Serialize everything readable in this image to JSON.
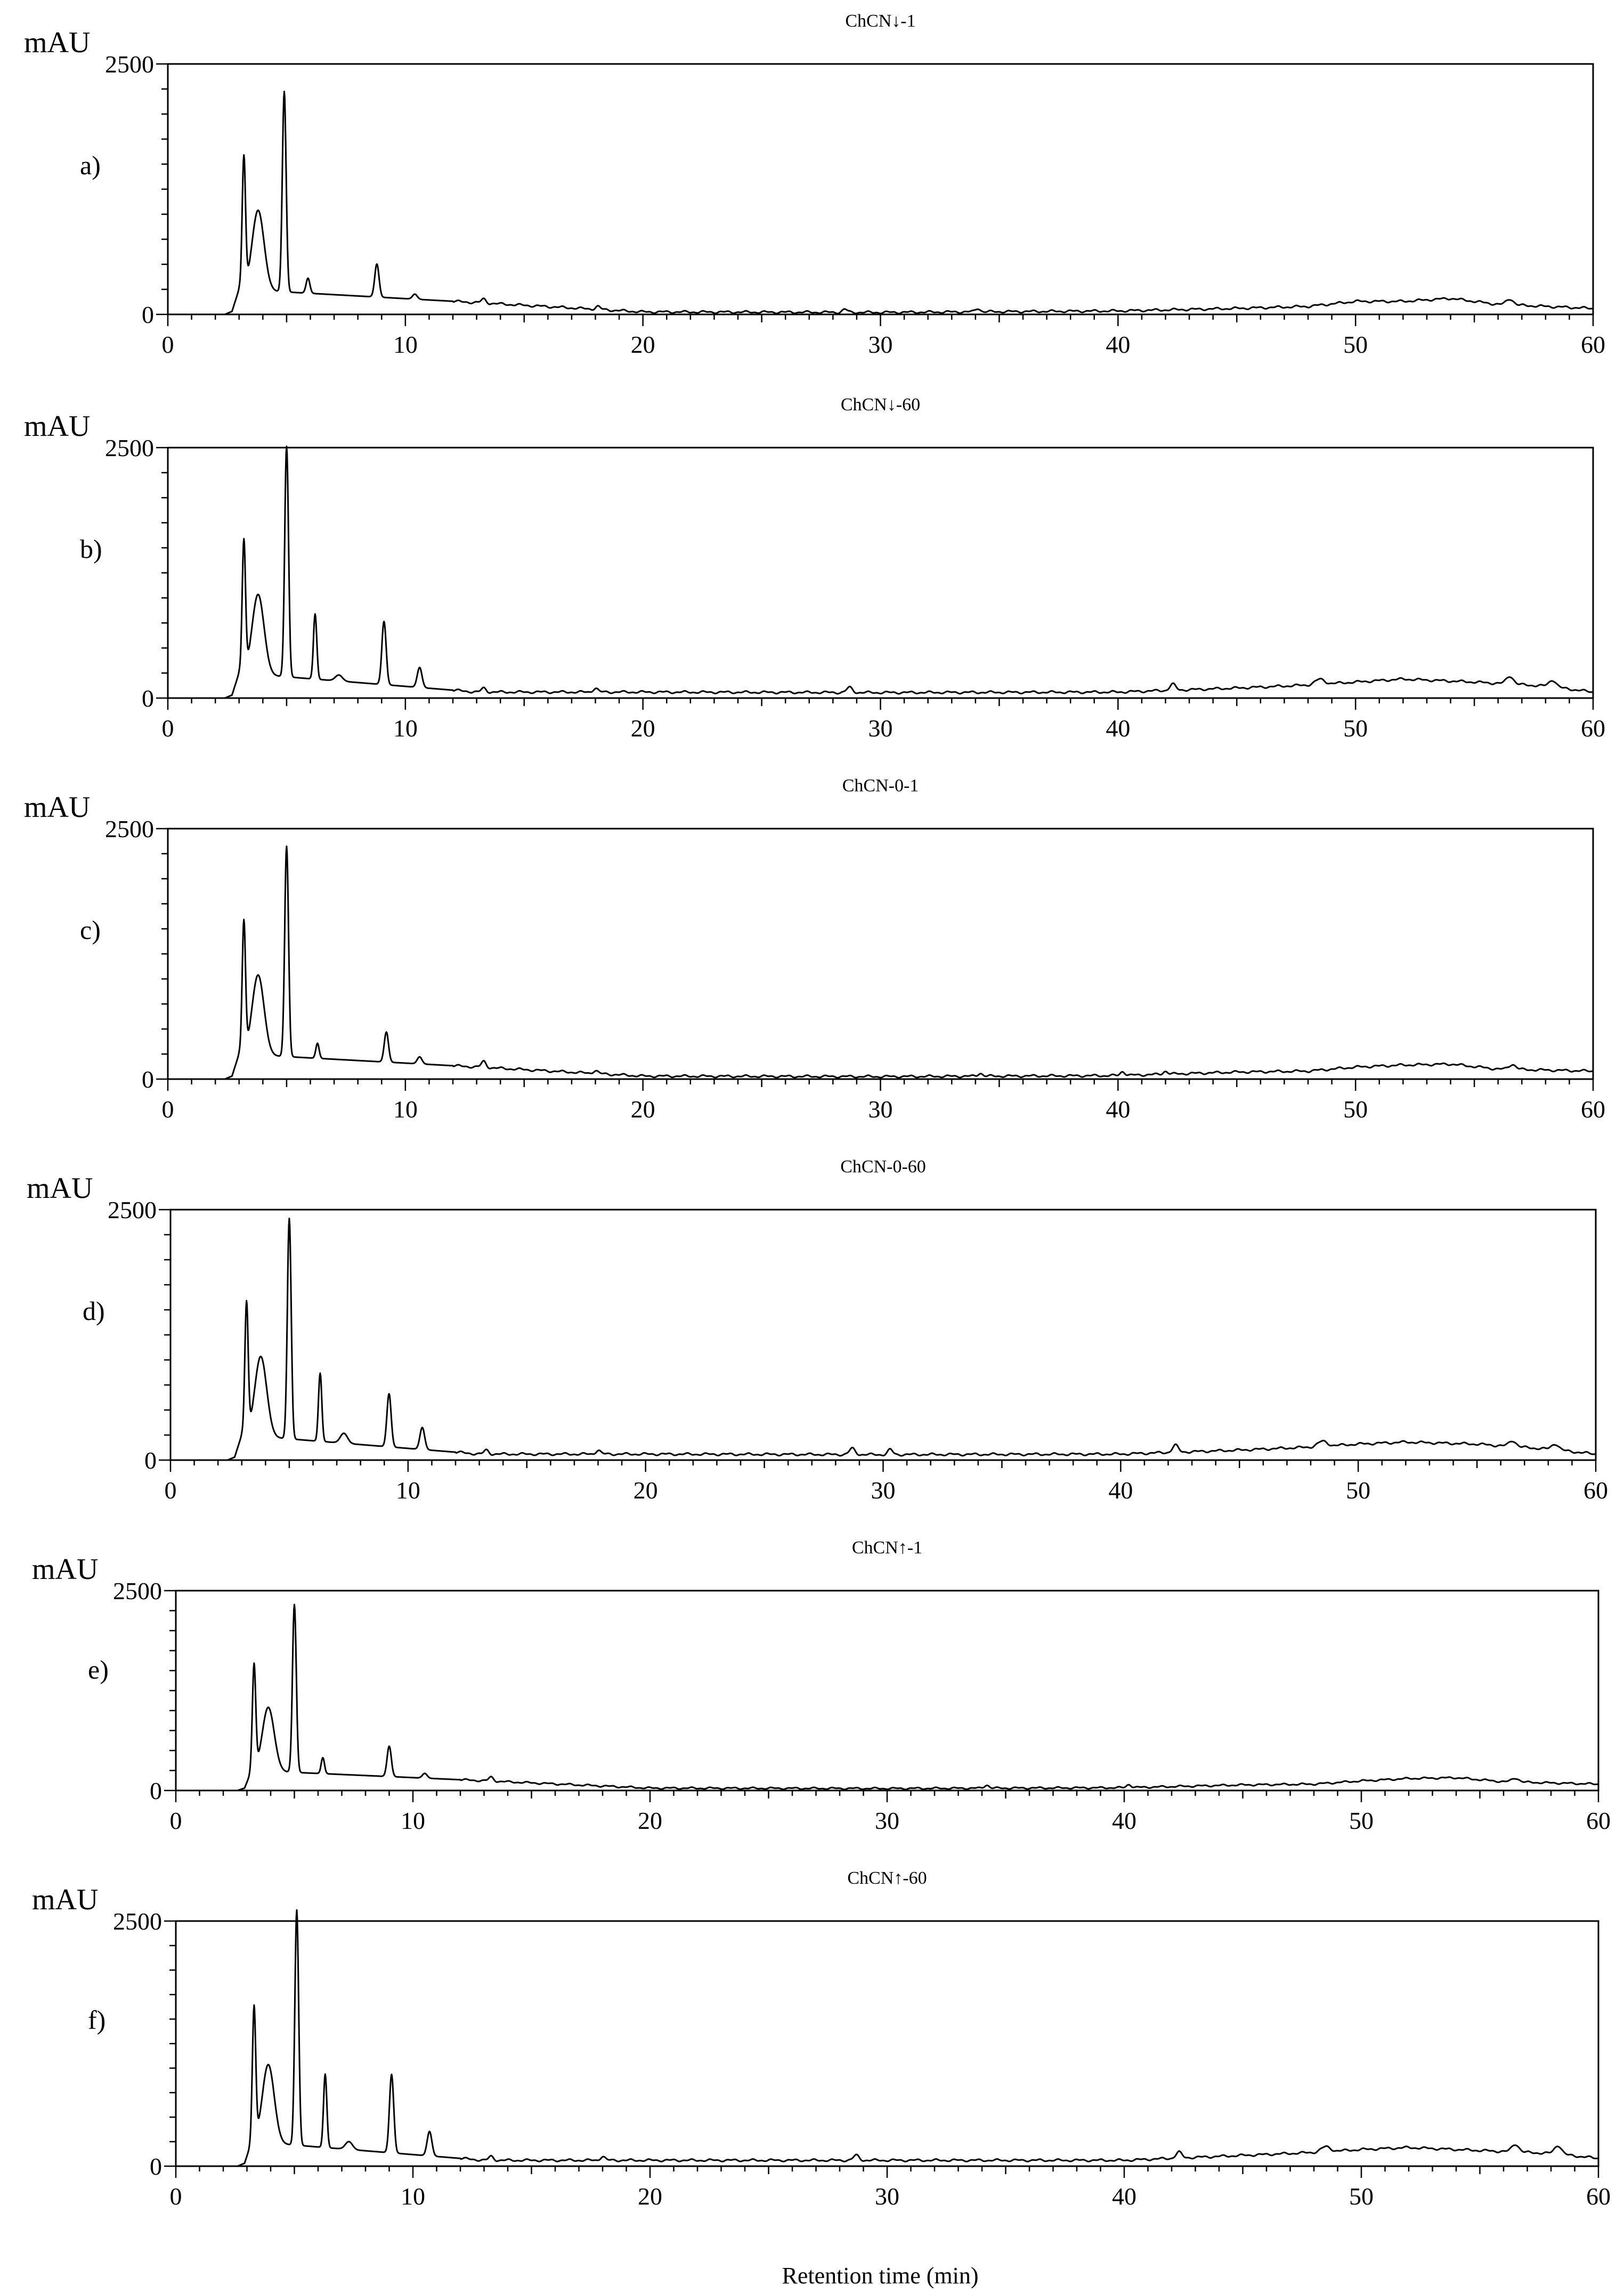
{
  "figure": {
    "xlabel": "Retention time (min)"
  },
  "chart_data": [
    {
      "type": "line",
      "panel": "a)",
      "title": "ChCN↓-1",
      "ylabel": "mAU",
      "xlim": [
        0,
        60
      ],
      "ylim": [
        0,
        2500
      ],
      "xticks": [
        0,
        10,
        20,
        30,
        40,
        50,
        60
      ],
      "yticks": [
        0,
        2500
      ],
      "baseline": [
        [
          0,
          0
        ],
        [
          2.4,
          0
        ],
        [
          2.7,
          30
        ],
        [
          3,
          250
        ],
        [
          20,
          25
        ],
        [
          30,
          20
        ],
        [
          40,
          35
        ],
        [
          45,
          60
        ],
        [
          48,
          80
        ],
        [
          50,
          130
        ],
        [
          52,
          130
        ],
        [
          54,
          160
        ],
        [
          56,
          100
        ],
        [
          60,
          60
        ]
      ],
      "peaks": [
        [
          3.2,
          1300,
          0.07
        ],
        [
          3.8,
          800,
          0.25
        ],
        [
          4.9,
          2000,
          0.08
        ],
        [
          5.9,
          150,
          0.08
        ],
        [
          8.8,
          330,
          0.09
        ],
        [
          10.4,
          50,
          0.1
        ],
        [
          13.3,
          40,
          0.1
        ],
        [
          18.1,
          30,
          0.1
        ],
        [
          28.5,
          30,
          0.1
        ],
        [
          34.1,
          35,
          0.1
        ],
        [
          56.5,
          60,
          0.15
        ]
      ]
    },
    {
      "type": "line",
      "panel": "b)",
      "title": "ChCN↓-60",
      "ylabel": "mAU",
      "xlim": [
        0,
        60
      ],
      "ylim": [
        0,
        2500
      ],
      "xticks": [
        0,
        10,
        20,
        30,
        40,
        50,
        60
      ],
      "yticks": [
        0,
        2500
      ],
      "baseline": [
        [
          0,
          0
        ],
        [
          2.4,
          0
        ],
        [
          2.7,
          30
        ],
        [
          3,
          250
        ],
        [
          13,
          60
        ],
        [
          20,
          60
        ],
        [
          30,
          55
        ],
        [
          40,
          60
        ],
        [
          45,
          100
        ],
        [
          48,
          130
        ],
        [
          50,
          160
        ],
        [
          52,
          190
        ],
        [
          55,
          160
        ],
        [
          58,
          120
        ],
        [
          60,
          60
        ]
      ],
      "peaks": [
        [
          3.2,
          1300,
          0.07
        ],
        [
          3.8,
          800,
          0.25
        ],
        [
          5,
          2300,
          0.08
        ],
        [
          6.2,
          650,
          0.07
        ],
        [
          7.2,
          60,
          0.15
        ],
        [
          9.1,
          630,
          0.09
        ],
        [
          10.6,
          200,
          0.1
        ],
        [
          13.3,
          40,
          0.1
        ],
        [
          18,
          40,
          0.1
        ],
        [
          28.7,
          50,
          0.12
        ],
        [
          42.3,
          60,
          0.12
        ],
        [
          48.5,
          50,
          0.2
        ],
        [
          56.5,
          80,
          0.15
        ],
        [
          58.3,
          70,
          0.15
        ]
      ]
    },
    {
      "type": "line",
      "panel": "c)",
      "title": "ChCN-0-1",
      "ylabel": "mAU",
      "xlim": [
        0,
        60
      ],
      "ylim": [
        0,
        2500
      ],
      "xticks": [
        0,
        10,
        20,
        30,
        40,
        50,
        60
      ],
      "yticks": [
        0,
        2500
      ],
      "baseline": [
        [
          0,
          0
        ],
        [
          2.4,
          0
        ],
        [
          2.7,
          30
        ],
        [
          3,
          250
        ],
        [
          20,
          30
        ],
        [
          30,
          25
        ],
        [
          40,
          35
        ],
        [
          45,
          70
        ],
        [
          48,
          80
        ],
        [
          50,
          120
        ],
        [
          52,
          140
        ],
        [
          54,
          150
        ],
        [
          56,
          100
        ],
        [
          60,
          80
        ]
      ],
      "peaks": [
        [
          3.2,
          1300,
          0.07
        ],
        [
          3.8,
          800,
          0.25
        ],
        [
          5,
          2100,
          0.08
        ],
        [
          6.3,
          150,
          0.07
        ],
        [
          9.2,
          300,
          0.09
        ],
        [
          10.6,
          70,
          0.1
        ],
        [
          13.3,
          60,
          0.1
        ],
        [
          18,
          30,
          0.1
        ],
        [
          34.2,
          30,
          0.1
        ],
        [
          40.2,
          40,
          0.1
        ],
        [
          42,
          30,
          0.1
        ],
        [
          56.6,
          50,
          0.15
        ]
      ]
    },
    {
      "type": "line",
      "panel": "d)",
      "title": "ChCN-0-60",
      "ylabel": "mAU",
      "xlim": [
        0,
        60
      ],
      "ylim": [
        0,
        2500
      ],
      "xticks": [
        0,
        10,
        20,
        30,
        40,
        50,
        60
      ],
      "yticks": [
        0,
        2500
      ],
      "baseline": [
        [
          0,
          0
        ],
        [
          2.4,
          0
        ],
        [
          2.7,
          30
        ],
        [
          3,
          250
        ],
        [
          13,
          60
        ],
        [
          20,
          60
        ],
        [
          30,
          55
        ],
        [
          40,
          60
        ],
        [
          45,
          100
        ],
        [
          48,
          130
        ],
        [
          50,
          160
        ],
        [
          52,
          180
        ],
        [
          55,
          160
        ],
        [
          58,
          110
        ],
        [
          60,
          60
        ]
      ],
      "peaks": [
        [
          3.2,
          1300,
          0.07
        ],
        [
          3.8,
          800,
          0.25
        ],
        [
          5,
          2200,
          0.08
        ],
        [
          6.3,
          680,
          0.07
        ],
        [
          7.3,
          100,
          0.15
        ],
        [
          9.2,
          530,
          0.09
        ],
        [
          10.6,
          220,
          0.1
        ],
        [
          13.3,
          40,
          0.1
        ],
        [
          18,
          40,
          0.1
        ],
        [
          28.7,
          60,
          0.12
        ],
        [
          30.3,
          50,
          0.1
        ],
        [
          42.3,
          70,
          0.12
        ],
        [
          48.5,
          50,
          0.2
        ],
        [
          56.5,
          60,
          0.15
        ],
        [
          58.3,
          60,
          0.15
        ]
      ]
    },
    {
      "type": "line",
      "panel": "e)",
      "title": "ChCN↑-1",
      "ylabel": "mAU",
      "xlim": [
        0,
        60
      ],
      "ylim": [
        0,
        2500
      ],
      "xticks": [
        0,
        10,
        20,
        30,
        40,
        50,
        60
      ],
      "yticks": [
        0,
        2500
      ],
      "baseline": [
        [
          0,
          0
        ],
        [
          2.6,
          0
        ],
        [
          2.9,
          30
        ],
        [
          3.2,
          250
        ],
        [
          20,
          30
        ],
        [
          30,
          25
        ],
        [
          40,
          35
        ],
        [
          45,
          70
        ],
        [
          48,
          80
        ],
        [
          50,
          120
        ],
        [
          52,
          150
        ],
        [
          54,
          160
        ],
        [
          56,
          110
        ],
        [
          60,
          80
        ]
      ],
      "peaks": [
        [
          3.3,
          1300,
          0.07
        ],
        [
          3.9,
          800,
          0.25
        ],
        [
          5,
          2100,
          0.08
        ],
        [
          6.2,
          200,
          0.07
        ],
        [
          9,
          380,
          0.09
        ],
        [
          10.5,
          60,
          0.1
        ],
        [
          13.3,
          50,
          0.1
        ],
        [
          34.2,
          40,
          0.1
        ],
        [
          40.2,
          40,
          0.1
        ],
        [
          56.5,
          50,
          0.15
        ]
      ]
    },
    {
      "type": "line",
      "panel": "f)",
      "title": "ChCN↑-60",
      "ylabel": "mAU",
      "xlim": [
        0,
        60
      ],
      "ylim": [
        0,
        2500
      ],
      "xticks": [
        0,
        10,
        20,
        30,
        40,
        50,
        60
      ],
      "yticks": [
        0,
        2500
      ],
      "baseline": [
        [
          0,
          0
        ],
        [
          2.6,
          0
        ],
        [
          2.9,
          30
        ],
        [
          3.2,
          250
        ],
        [
          13,
          60
        ],
        [
          20,
          60
        ],
        [
          30,
          60
        ],
        [
          40,
          60
        ],
        [
          45,
          110
        ],
        [
          48,
          140
        ],
        [
          50,
          170
        ],
        [
          52,
          190
        ],
        [
          55,
          160
        ],
        [
          58,
          130
        ],
        [
          60,
          80
        ]
      ],
      "peaks": [
        [
          3.3,
          1350,
          0.07
        ],
        [
          3.9,
          800,
          0.25
        ],
        [
          5.1,
          2400,
          0.08
        ],
        [
          6.3,
          750,
          0.07
        ],
        [
          7.3,
          80,
          0.15
        ],
        [
          9.1,
          800,
          0.09
        ],
        [
          10.7,
          250,
          0.1
        ],
        [
          13.3,
          40,
          0.1
        ],
        [
          18,
          40,
          0.1
        ],
        [
          28.7,
          50,
          0.12
        ],
        [
          42.3,
          60,
          0.12
        ],
        [
          48.5,
          50,
          0.2
        ],
        [
          56.5,
          80,
          0.15
        ],
        [
          58.3,
          90,
          0.15
        ]
      ]
    }
  ]
}
